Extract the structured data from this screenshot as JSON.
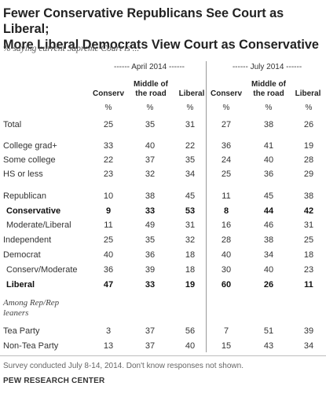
{
  "title_line1": "Fewer Conservative Republicans See Court as Liberal;",
  "title_line2": "More Liberal Democrats View Court as Conservative",
  "subtitle": "% saying current Supreme Court is ...",
  "groups": {
    "april": "------ April 2014 ------",
    "july": "------ July 2014 ------"
  },
  "columns": {
    "conserv": "Conserv",
    "middle_line1": "Middle of",
    "middle_line2": "the road",
    "liberal": "Liberal"
  },
  "percent_sign": "%",
  "rows": [
    {
      "label": "Total",
      "values": [
        "25",
        "35",
        "31",
        "27",
        "38",
        "26"
      ]
    },
    {
      "label": "College grad+",
      "values": [
        "33",
        "40",
        "22",
        "36",
        "41",
        "19"
      ]
    },
    {
      "label": "Some college",
      "values": [
        "22",
        "37",
        "35",
        "24",
        "40",
        "28"
      ]
    },
    {
      "label": "HS or less",
      "values": [
        "23",
        "32",
        "34",
        "25",
        "36",
        "29"
      ]
    },
    {
      "label": "Republican",
      "values": [
        "10",
        "38",
        "45",
        "11",
        "45",
        "38"
      ]
    },
    {
      "label": "Conservative",
      "values": [
        "9",
        "33",
        "53",
        "8",
        "44",
        "42"
      ]
    },
    {
      "label": "Moderate/Liberal",
      "values": [
        "11",
        "49",
        "31",
        "16",
        "46",
        "31"
      ]
    },
    {
      "label": "Independent",
      "values": [
        "25",
        "35",
        "32",
        "28",
        "38",
        "25"
      ]
    },
    {
      "label": "Democrat",
      "values": [
        "40",
        "36",
        "18",
        "40",
        "34",
        "18"
      ]
    },
    {
      "label": "Conserv/Moderate",
      "values": [
        "36",
        "39",
        "18",
        "30",
        "40",
        "23"
      ]
    },
    {
      "label": "Liberal",
      "values": [
        "47",
        "33",
        "19",
        "60",
        "26",
        "11"
      ]
    },
    {
      "label": "Tea Party",
      "values": [
        "3",
        "37",
        "56",
        "7",
        "51",
        "39"
      ]
    },
    {
      "label": "Non-Tea Party",
      "values": [
        "13",
        "37",
        "40",
        "15",
        "43",
        "34"
      ]
    }
  ],
  "section_line1": "Among Rep/Rep",
  "section_line2": "leaners",
  "note": "Survey conducted July 8-14, 2014. Don't know responses not shown.",
  "source": "PEW RESEARCH CENTER"
}
